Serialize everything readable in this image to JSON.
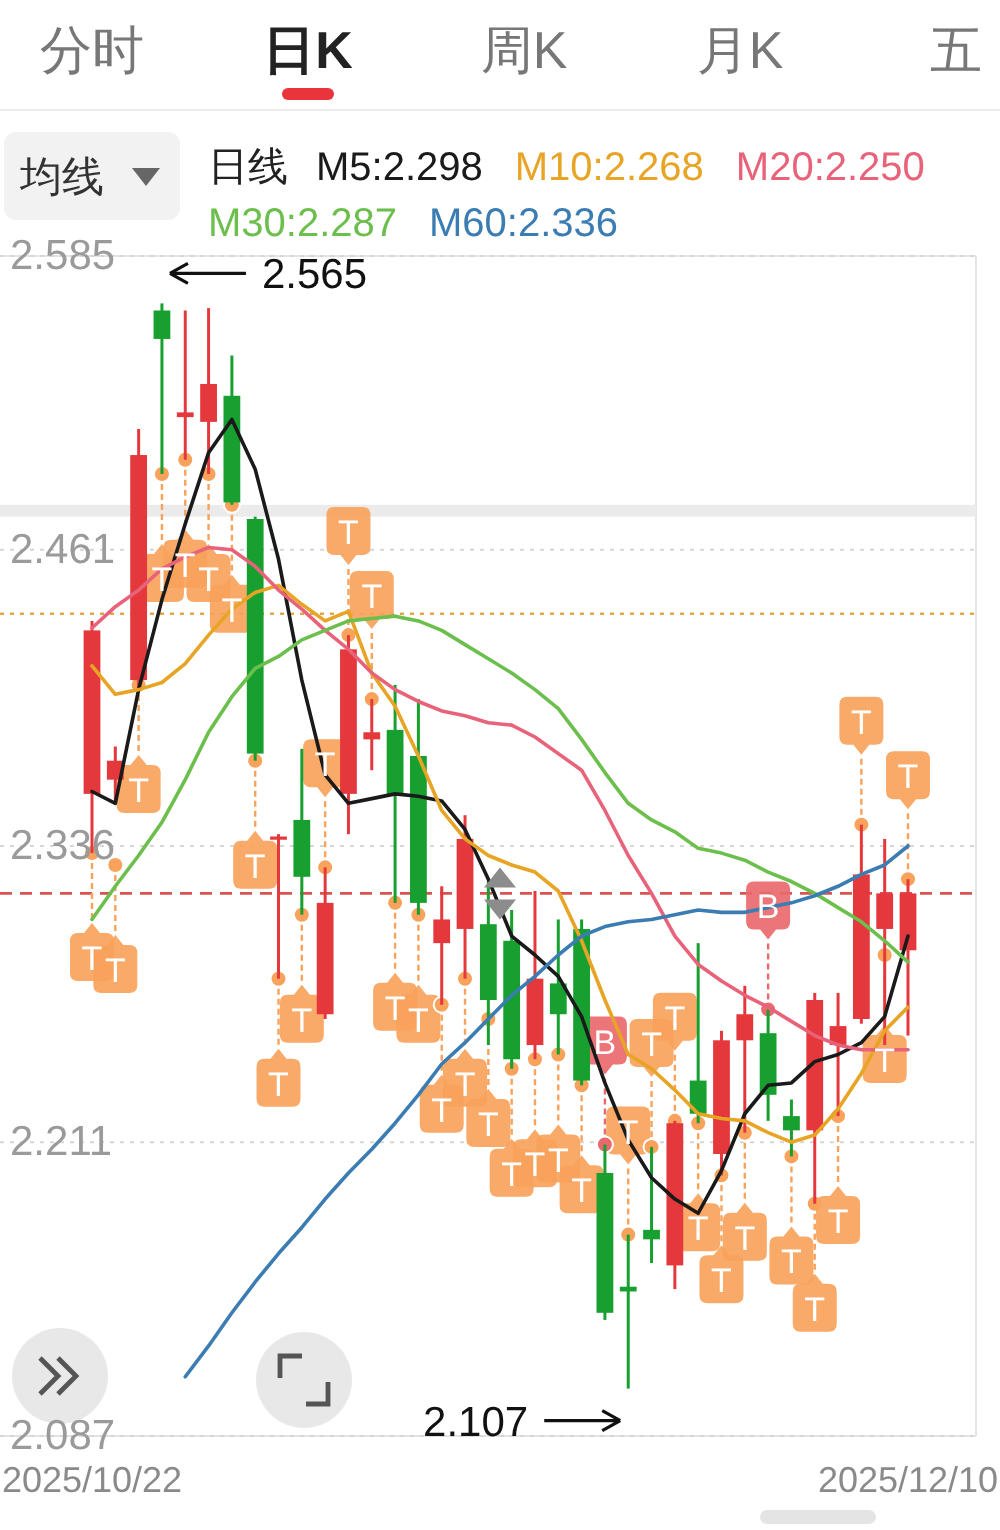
{
  "chart_data": {
    "type": "candlestick",
    "categories": [
      "2025/10/22",
      null,
      null,
      null,
      null,
      null,
      null,
      null,
      null,
      null,
      null,
      null,
      null,
      null,
      null,
      null,
      null,
      null,
      null,
      null,
      null,
      null,
      null,
      null,
      null,
      null,
      null,
      null,
      null,
      null,
      null,
      null,
      null,
      null,
      null,
      "2025/12/10"
    ],
    "ohlc": [
      [
        2.358,
        2.431,
        2.333,
        2.427
      ],
      [
        2.364,
        2.378,
        2.354,
        2.372
      ],
      [
        2.406,
        2.512,
        2.402,
        2.501
      ],
      [
        2.562,
        2.565,
        2.493,
        2.55
      ],
      [
        2.517,
        2.562,
        2.499,
        2.519
      ],
      [
        2.515,
        2.563,
        2.493,
        2.531
      ],
      [
        2.526,
        2.543,
        2.48,
        2.481
      ],
      [
        2.474,
        2.475,
        2.372,
        2.375
      ],
      [
        2.339,
        2.341,
        2.28,
        2.34
      ],
      [
        2.347,
        2.377,
        2.307,
        2.323
      ],
      [
        2.265,
        2.327,
        2.263,
        2.312
      ],
      [
        2.358,
        2.425,
        2.341,
        2.419
      ],
      [
        2.381,
        2.398,
        2.368,
        2.384
      ],
      [
        2.385,
        2.404,
        2.312,
        2.358
      ],
      [
        2.374,
        2.398,
        2.307,
        2.312
      ],
      [
        2.295,
        2.319,
        2.269,
        2.305
      ],
      [
        2.301,
        2.349,
        2.28,
        2.339
      ],
      [
        2.303,
        2.322,
        2.252,
        2.271
      ],
      [
        2.296,
        2.309,
        2.242,
        2.246
      ],
      [
        2.252,
        2.317,
        2.246,
        2.28
      ],
      [
        2.278,
        2.305,
        2.248,
        2.265
      ],
      [
        2.301,
        2.305,
        2.235,
        2.237
      ],
      [
        2.198,
        2.21,
        2.136,
        2.139
      ],
      [
        2.15,
        2.172,
        2.107,
        2.148
      ],
      [
        2.174,
        2.209,
        2.16,
        2.17
      ],
      [
        2.159,
        2.22,
        2.149,
        2.219
      ],
      [
        2.237,
        2.295,
        2.219,
        2.223
      ],
      [
        2.206,
        2.258,
        2.197,
        2.254
      ],
      [
        2.254,
        2.277,
        2.215,
        2.265
      ],
      [
        2.257,
        2.267,
        2.22,
        2.231
      ],
      [
        2.222,
        2.229,
        2.205,
        2.216
      ],
      [
        2.216,
        2.274,
        2.185,
        2.271
      ],
      [
        2.252,
        2.274,
        2.222,
        2.26
      ],
      [
        2.263,
        2.345,
        2.261,
        2.324
      ],
      [
        2.301,
        2.339,
        2.252,
        2.316
      ],
      [
        2.292,
        2.322,
        2.256,
        2.316
      ]
    ],
    "colors": [
      "#e5383d",
      "#e5383d",
      "#e5383d",
      "#17a02f",
      "#e5383d",
      "#e5383d",
      "#17a02f",
      "#17a02f",
      "#e5383d",
      "#17a02f",
      "#e5383d",
      "#e5383d",
      "#e5383d",
      "#17a02f",
      "#17a02f",
      "#e5383d",
      "#e5383d",
      "#17a02f",
      "#17a02f",
      "#e5383d",
      "#17a02f",
      "#17a02f",
      "#17a02f",
      "#17a02f",
      "#17a02f",
      "#e5383d",
      "#17a02f",
      "#e5383d",
      "#e5383d",
      "#17a02f",
      "#17a02f",
      "#e5383d",
      "#e5383d",
      "#e5383d",
      "#e5383d",
      "#e5383d"
    ],
    "series": [
      {
        "type": "line",
        "name": "M5:2.298",
        "color": "#1a1a1a",
        "values": [
          2.359,
          2.354,
          2.402,
          2.44,
          2.472,
          2.502,
          2.516,
          2.495,
          2.457,
          2.406,
          2.366,
          2.354,
          2.356,
          2.358,
          2.357,
          2.355,
          2.343,
          2.322,
          2.298,
          2.29,
          2.281,
          2.264,
          2.236,
          2.212,
          2.196,
          2.187,
          2.181,
          2.199,
          2.223,
          2.235,
          2.236,
          2.245,
          2.248,
          2.253,
          2.264,
          2.298
        ]
      },
      {
        "type": "line",
        "name": "M10:2.268",
        "color": "#e8a425",
        "values": [
          2.412,
          2.4,
          2.402,
          2.405,
          2.413,
          2.425,
          2.436,
          2.443,
          2.446,
          2.438,
          2.431,
          2.435,
          2.409,
          2.395,
          2.374,
          2.351,
          2.339,
          2.332,
          2.328,
          2.325,
          2.317,
          2.296,
          2.271,
          2.248,
          2.242,
          2.233,
          2.223,
          2.221,
          2.22,
          2.215,
          2.211,
          2.214,
          2.225,
          2.24,
          2.258,
          2.268
        ]
      },
      {
        "type": "line",
        "name": "M20:2.250",
        "color": "#e8637a",
        "values": [
          2.428,
          2.437,
          2.444,
          2.453,
          2.458,
          2.462,
          2.461,
          2.454,
          2.444,
          2.436,
          2.427,
          2.419,
          2.409,
          2.402,
          2.397,
          2.393,
          2.391,
          2.388,
          2.387,
          2.382,
          2.375,
          2.368,
          2.351,
          2.332,
          2.316,
          2.298,
          2.286,
          2.279,
          2.273,
          2.268,
          2.262,
          2.256,
          2.252,
          2.25,
          2.25,
          2.25
        ]
      },
      {
        "type": "line",
        "name": "M30:2.287",
        "color": "#6cbf4c",
        "values": [
          2.305,
          2.319,
          2.332,
          2.346,
          2.364,
          2.384,
          2.399,
          2.411,
          2.416,
          2.423,
          2.427,
          2.431,
          2.432,
          2.433,
          2.431,
          2.427,
          2.421,
          2.415,
          2.409,
          2.402,
          2.394,
          2.381,
          2.367,
          2.354,
          2.347,
          2.342,
          2.335,
          2.333,
          2.33,
          2.325,
          2.321,
          2.316,
          2.31,
          2.304,
          2.296,
          2.287
        ]
      },
      {
        "type": "line",
        "name": "M60:2.336",
        "color": "#3b7db3",
        "values": [
          null,
          null,
          null,
          null,
          2.112,
          2.125,
          2.139,
          2.152,
          2.164,
          2.175,
          2.187,
          2.198,
          2.208,
          2.219,
          2.231,
          2.244,
          2.253,
          2.263,
          2.273,
          2.281,
          2.29,
          2.298,
          2.302,
          2.304,
          2.305,
          2.307,
          2.309,
          2.308,
          2.308,
          2.31,
          2.312,
          2.315,
          2.319,
          2.324,
          2.328,
          2.336
        ]
      },
      {
        "type": "scatter",
        "color": "#f8a25b",
        "marker": "circle",
        "values": [
          2.333,
          2.328,
          2.404,
          2.493,
          2.499,
          2.493,
          2.48,
          2.372,
          2.28,
          2.307,
          2.327,
          2.425,
          2.398,
          2.312,
          2.307,
          2.269,
          2.28,
          2.263,
          2.242,
          2.246,
          2.248,
          2.235,
          null,
          2.172,
          2.209,
          2.22,
          2.219,
          2.197,
          2.215,
          null,
          2.205,
          2.185,
          2.222,
          2.345,
          2.29,
          2.322
        ],
        "value_labels": [
          "T",
          "T",
          "T",
          "T",
          "T",
          "T",
          "T",
          "T",
          "T",
          "T",
          "T",
          "T",
          "T",
          "T",
          "T",
          "T",
          "T",
          "T",
          "T",
          "T",
          "T",
          "T",
          null,
          "T",
          "T",
          "T",
          "T",
          "T",
          "T",
          null,
          "T",
          "T",
          "T",
          "T",
          "T",
          "T"
        ]
      },
      {
        "type": "scatter",
        "color": "#e9696e",
        "marker": "circle",
        "values": [
          null,
          null,
          null,
          null,
          null,
          null,
          null,
          null,
          null,
          null,
          null,
          null,
          null,
          null,
          null,
          null,
          null,
          null,
          null,
          null,
          null,
          null,
          2.21,
          null,
          null,
          null,
          null,
          null,
          null,
          2.267,
          null,
          null,
          null,
          null,
          null,
          null
        ],
        "value_labels": [
          null,
          null,
          null,
          null,
          null,
          null,
          null,
          null,
          null,
          null,
          null,
          null,
          null,
          null,
          null,
          null,
          null,
          null,
          null,
          null,
          null,
          null,
          "B",
          null,
          null,
          null,
          null,
          null,
          null,
          "B",
          null,
          null,
          null,
          null,
          null,
          null
        ]
      }
    ],
    "legend": "top",
    "legend_title": "日线",
    "ylim": [
      2.087,
      2.585
    ],
    "yticks": [
      2.585,
      2.461,
      2.336,
      2.211,
      2.087
    ],
    "grid": "y",
    "bands": [
      {
        "axis": "y",
        "from": 2.475,
        "to": 2.48,
        "color": "#ebebeb"
      }
    ],
    "ref_lines": [
      {
        "axis": "y",
        "value": 2.434,
        "color": "#e3a548",
        "line_style": "dotted"
      },
      {
        "axis": "y",
        "value": 2.316,
        "color": "#d9534f",
        "line_style": "dashed"
      }
    ],
    "annotations": [
      "分时",
      "日K",
      "周K",
      "月K",
      "五",
      "均线",
      "2.565",
      "2.107"
    ]
  }
}
